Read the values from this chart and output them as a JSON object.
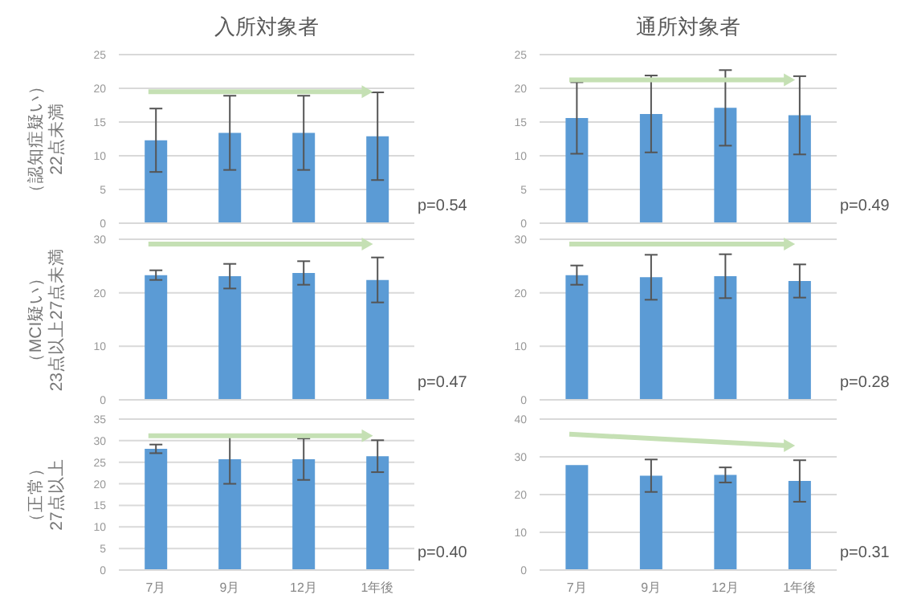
{
  "chart_data": [
    {
      "type": "bar",
      "title": "入所対象者",
      "ylabel": "（認知症疑い）\n22点未満",
      "categories": [
        null,
        null,
        null,
        null
      ],
      "values": [
        12.3,
        13.4,
        13.4,
        12.9
      ],
      "errors": [
        4.7,
        5.5,
        5.5,
        6.5
      ],
      "color": "#5b9bd5",
      "ylim": [
        0,
        25
      ],
      "yticks": [
        0,
        5,
        10,
        15,
        20,
        25
      ],
      "grid": "y",
      "tick_labels": "y",
      "annotations": [
        "p=0.54"
      ]
    },
    {
      "type": "bar",
      "title": "通所対象者",
      "categories": [
        null,
        null,
        null,
        null
      ],
      "values": [
        15.6,
        16.2,
        17.1,
        16.0
      ],
      "errors": [
        5.3,
        5.7,
        5.6,
        5.8
      ],
      "color": "#5b9bd5",
      "ylim": [
        0,
        25
      ],
      "yticks": [
        0,
        5,
        10,
        15,
        20,
        25
      ],
      "grid": "y",
      "tick_labels": "y",
      "annotations": [
        "p=0.49"
      ]
    },
    {
      "type": "bar",
      "ylabel": "（MCI疑い）\n23点以上27点未満",
      "categories": [
        null,
        null,
        null,
        null
      ],
      "values": [
        23.3,
        23.1,
        23.7,
        22.4
      ],
      "errors": [
        0.9,
        2.3,
        2.2,
        4.2
      ],
      "color": "#5b9bd5",
      "ylim": [
        0,
        30
      ],
      "yticks": [
        0,
        10,
        20,
        30
      ],
      "grid": "y",
      "tick_labels": "y",
      "annotations": [
        "p=0.47"
      ]
    },
    {
      "type": "bar",
      "categories": [
        null,
        null,
        null,
        null
      ],
      "values": [
        23.3,
        22.9,
        23.1,
        22.2
      ],
      "errors": [
        1.8,
        4.2,
        4.1,
        3.1
      ],
      "color": "#5b9bd5",
      "ylim": [
        0,
        30
      ],
      "yticks": [
        0,
        10,
        20,
        30
      ],
      "grid": "y",
      "tick_labels": "y",
      "annotations": [
        "p=0.28"
      ]
    },
    {
      "type": "bar",
      "ylabel": "（正常）\n27点以上",
      "categories": [
        "7月",
        "9月",
        "12月",
        "1年後"
      ],
      "values": [
        28.1,
        25.7,
        25.7,
        26.4
      ],
      "errors": [
        1.0,
        5.7,
        4.8,
        3.7
      ],
      "color": "#5b9bd5",
      "ylim": [
        0,
        35
      ],
      "yticks": [
        0,
        5,
        10,
        15,
        20,
        25,
        30,
        35
      ],
      "grid": "y",
      "annotations": [
        "p=0.40"
      ]
    },
    {
      "type": "bar",
      "categories": [
        "7月",
        "9月",
        "12月",
        "1年後"
      ],
      "values": [
        27.8,
        25.0,
        25.2,
        23.6
      ],
      "errors": [
        null,
        4.3,
        2.0,
        5.5
      ],
      "color": "#5b9bd5",
      "ylim": [
        0,
        40
      ],
      "yticks": [
        0,
        10,
        20,
        30,
        40
      ],
      "grid": "y",
      "annotations": [
        "p=0.31"
      ]
    }
  ]
}
